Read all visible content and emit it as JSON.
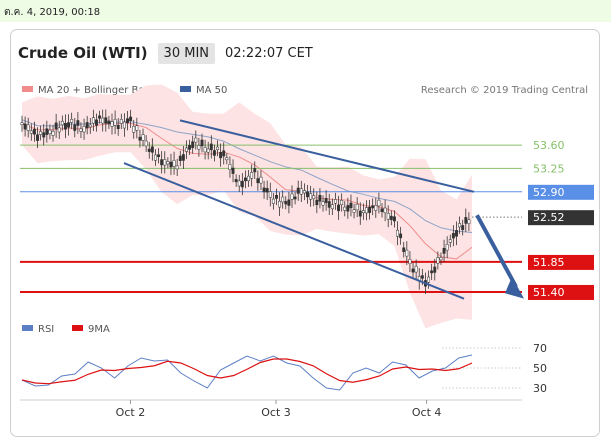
{
  "date_bar": "ต.ค. 4, 2019, 00:18",
  "header": {
    "instrument": "Crude Oil (WTI)",
    "timeframe": "30 MIN",
    "time": "02:22:07 CET"
  },
  "legend_top": [
    {
      "label": "MA 20 + Bollinger Bands",
      "color": "#f08c8c"
    },
    {
      "label": "MA 50",
      "color": "#3a5f9e"
    }
  ],
  "research": "Research © 2019 Trading Central",
  "legend_bottom": [
    {
      "label": "RSI",
      "color": "#5c7fc4"
    },
    {
      "label": "9MA",
      "color": "#dd1111"
    }
  ],
  "colors": {
    "resistance": "#86c06a",
    "pivot": "#5a8fe8",
    "support": "#dd1111",
    "channel": "#3a5f9e",
    "price_box": "#333333"
  },
  "chart_data": [
    {
      "type": "line",
      "title": "Crude Oil (WTI)",
      "x_ticks": [
        "Oct 2",
        "Oct 3",
        "Oct 4"
      ],
      "x_tick_positions": [
        0.22,
        0.51,
        0.81
      ],
      "ylim": [
        51.1,
        54.2
      ],
      "price_path": [
        53.92,
        53.74,
        53.82,
        53.94,
        53.85,
        54.0,
        53.9,
        53.95,
        53.6,
        53.35,
        53.3,
        53.65,
        53.55,
        53.48,
        53.0,
        53.18,
        52.82,
        52.72,
        52.92,
        52.78,
        52.72,
        52.68,
        52.6,
        52.7,
        52.45,
        51.82,
        51.52,
        51.92,
        52.32,
        52.52
      ],
      "levels": [
        {
          "value": 53.6,
          "label": "53.60",
          "kind": "resistance"
        },
        {
          "value": 53.25,
          "label": "53.25",
          "kind": "resistance"
        },
        {
          "value": 52.9,
          "label": "52.90",
          "kind": "pivot"
        },
        {
          "value": 51.85,
          "label": "51.85",
          "kind": "support"
        },
        {
          "value": 51.4,
          "label": "51.40",
          "kind": "support"
        }
      ],
      "last_price": {
        "value": 52.52,
        "label": "52.52"
      },
      "series": [
        "MA 20 + Bollinger Bands",
        "MA 50"
      ]
    },
    {
      "type": "line",
      "series": [
        "RSI",
        "9MA"
      ],
      "y_ticks": [
        "70",
        "50",
        "30"
      ],
      "ylim": [
        20,
        78
      ],
      "rsi": [
        38,
        32,
        33,
        42,
        44,
        56,
        50,
        40,
        52,
        60,
        57,
        58,
        45,
        37,
        30,
        48,
        55,
        62,
        57,
        62,
        55,
        52,
        40,
        30,
        28,
        45,
        50,
        45,
        56,
        53,
        40,
        47,
        50,
        60,
        63
      ]
    }
  ]
}
